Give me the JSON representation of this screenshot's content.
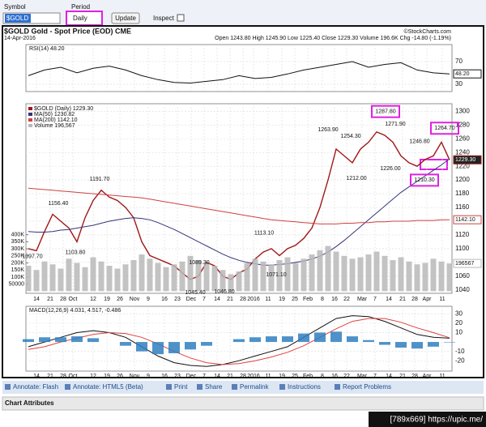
{
  "toolbar": {
    "symbol_label": "Symbol",
    "symbol": "$GOLD",
    "period_label": "Period",
    "period": "Daily",
    "update": "Update",
    "inspect": "Inspect"
  },
  "header": {
    "title": "$GOLD Gold - Spot Price (EOD) CME",
    "credit": "©StockCharts.com",
    "date": "14-Apr-2016",
    "stats": "Open 1243.80 High 1245.90 Low 1225.40 Close 1229.30 Volume 196.6K Chg -14.80 (-1.19%)"
  },
  "chart_data": [
    {
      "type": "line",
      "title": "RSI(14) 48.20",
      "series": [
        {
          "color": "#111",
          "values": [
            45,
            55,
            60,
            50,
            58,
            62,
            55,
            45,
            38,
            33,
            32,
            35,
            38,
            45,
            40,
            42,
            48,
            55,
            60,
            65,
            70,
            60,
            65,
            68,
            55,
            50,
            48.2
          ],
          "tag": "48.20"
        }
      ],
      "ylim": [
        17,
        100
      ],
      "yticks": [
        70,
        30
      ],
      "grid": true
    },
    {
      "type": "line",
      "title": "$GOLD (Daily) 1229.30",
      "series": [
        {
          "name": "$GOLD (Daily) 1229.30",
          "color": "#a01818",
          "tag": "1229.30",
          "values": [
            1100,
            1097,
            1125,
            1150,
            1140,
            1130,
            1110,
            1145,
            1170,
            1185,
            1175,
            1170,
            1160,
            1145,
            1110,
            1090,
            1085,
            1080,
            1075,
            1065,
            1055,
            1060,
            1080,
            1075,
            1060,
            1055,
            1065,
            1070,
            1085,
            1095,
            1100,
            1090,
            1100,
            1105,
            1115,
            1130,
            1160,
            1200,
            1245,
            1235,
            1225,
            1245,
            1255,
            1270,
            1265,
            1255,
            1235,
            1225,
            1220,
            1230,
            1235,
            1255,
            1229.3
          ]
        },
        {
          "name": "MA(50) 1230.82",
          "color": "#33337a",
          "values": [
            1125,
            1124,
            1124,
            1125,
            1127,
            1128,
            1130,
            1132,
            1134,
            1137,
            1140,
            1142,
            1144,
            1145,
            1144,
            1142,
            1138,
            1133,
            1128,
            1122,
            1116,
            1110,
            1104,
            1098,
            1092,
            1087,
            1083,
            1080,
            1078,
            1076,
            1076,
            1077,
            1078,
            1080,
            1082,
            1085,
            1089,
            1095,
            1103,
            1112,
            1122,
            1132,
            1142,
            1152,
            1162,
            1172,
            1182,
            1190,
            1198,
            1206,
            1214,
            1222,
            1230.82
          ]
        },
        {
          "name": "MA(200) 1142.10",
          "color": "#d04040",
          "tag": "1142.10",
          "values": [
            1188,
            1187,
            1186,
            1185,
            1184,
            1183,
            1182,
            1181,
            1180,
            1179,
            1178,
            1177,
            1176,
            1175,
            1174,
            1172,
            1170,
            1168,
            1166,
            1164,
            1162,
            1160,
            1158,
            1156,
            1154,
            1152,
            1150,
            1148,
            1146,
            1144,
            1142,
            1141,
            1140,
            1139,
            1138,
            1137,
            1136,
            1136,
            1136,
            1137,
            1137,
            1138,
            1138,
            1139,
            1139,
            1140,
            1140,
            1140,
            1141,
            1141,
            1141,
            1142,
            1142.1
          ]
        },
        {
          "name": "Volume 196,567",
          "color": "#b8b8b8",
          "axis": "y2",
          "tag": "196567",
          "values": [
            180000,
            150000,
            210000,
            190000,
            160000,
            230000,
            200000,
            170000,
            240000,
            210000,
            180000,
            160000,
            190000,
            220000,
            260000,
            230000,
            200000,
            170000,
            190000,
            210000,
            250000,
            220000,
            200000,
            180000,
            150000,
            120000,
            140000,
            200000,
            230000,
            210000,
            190000,
            220000,
            240000,
            200000,
            230000,
            260000,
            290000,
            320000,
            280000,
            250000,
            230000,
            240000,
            260000,
            280000,
            250000,
            220000,
            240000,
            210000,
            190000,
            200000,
            230000,
            210000,
            196567
          ]
        }
      ],
      "ylim": [
        1035,
        1311
      ],
      "yticks": [
        1040,
        1060,
        1080,
        1100,
        1120,
        1140,
        1160,
        1180,
        1200,
        1220,
        1240,
        1260,
        1280,
        1300
      ],
      "y2lim": [
        -15000,
        1327000
      ],
      "y2ticks": [
        50000,
        {
          "value": 100000,
          "label": "100K"
        },
        {
          "value": 150000,
          "label": "150K"
        },
        {
          "value": 200000,
          "label": "200K"
        },
        {
          "value": 250000,
          "label": "250K"
        },
        {
          "value": 300000,
          "label": "300K"
        },
        {
          "value": 350000,
          "label": "350K"
        },
        {
          "value": 400000,
          "label": "400K"
        }
      ],
      "grid": true,
      "annotations": [
        {
          "value": 1097.7,
          "label": "1097.70"
        },
        {
          "value": 1156.4,
          "label": "1156.40"
        },
        {
          "value": 1103.8,
          "label": "1103.80"
        },
        {
          "value": 1191.7,
          "label": "1191.70"
        },
        {
          "value": 1089.3,
          "label": "1089.30"
        },
        {
          "value": 1045.4,
          "label": "1045.40"
        },
        {
          "value": 1046.8,
          "label": "1046.80"
        },
        {
          "value": 1113.1,
          "label": "1113.10"
        },
        {
          "value": 1071.1,
          "label": "1071.10"
        },
        {
          "value": 1263.9,
          "label": "1263.90"
        },
        {
          "value": 1254.3,
          "label": "1254.30"
        },
        {
          "value": 1212,
          "label": "1212.00"
        },
        {
          "value": 1287.8,
          "label": "1287.80",
          "highlight": true
        },
        {
          "value": 1271.9,
          "label": "1271.90"
        },
        {
          "value": 1226,
          "label": "1226.00"
        },
        {
          "value": 1246.8,
          "label": "1246.80"
        },
        {
          "value": 1210.3,
          "label": "1210.30",
          "highlight": true
        },
        {
          "value": 1264.7,
          "label": "1264.70",
          "highlight": true
        }
      ]
    },
    {
      "type": "line",
      "title": "MACD(12,26,9) 4.031, 4.517, -0.486",
      "series": [
        {
          "color": "#111",
          "values": [
            -5,
            0,
            5,
            10,
            12,
            10,
            5,
            -5,
            -15,
            -22,
            -25,
            -26,
            -24,
            -20,
            -15,
            -10,
            -5,
            5,
            15,
            25,
            28,
            27,
            22,
            15,
            8,
            5,
            4.031
          ]
        },
        {
          "color": "#e04040",
          "values": [
            -8,
            -5,
            0,
            4,
            8,
            10,
            9,
            5,
            -2,
            -10,
            -17,
            -22,
            -24,
            -23,
            -20,
            -16,
            -11,
            -4,
            5,
            14,
            22,
            25,
            25,
            21,
            15,
            10,
            4.517
          ]
        },
        {
          "color": "#2f7fbf",
          "type": "bar",
          "values": [
            3,
            5,
            5,
            6,
            4,
            0,
            -4,
            -10,
            -13,
            -12,
            -8,
            -4,
            0,
            3,
            5,
            6,
            6,
            9,
            10,
            11,
            6,
            2,
            -3,
            -6,
            -7,
            -5,
            -0.486
          ]
        }
      ],
      "ylim": [
        -31,
        38
      ],
      "yticks": [
        30,
        20,
        10,
        -10,
        -20
      ],
      "grid": true
    }
  ],
  "x_axis_labels": [
    "14",
    "21",
    "28",
    "Oct",
    "12",
    "19",
    "26",
    "Nov",
    "9",
    "16",
    "23",
    "Dec",
    "7",
    "14",
    "21",
    "28",
    "2016",
    "11",
    "19",
    "25",
    "Feb",
    "8",
    "16",
    "22",
    "Mar",
    "7",
    "14",
    "21",
    "28",
    "Apr",
    "11"
  ],
  "footer": {
    "links": [
      "Annotate: Flash",
      "Annotate: HTML5 (Beta)",
      "Print",
      "Share",
      "Permalink",
      "Instructions",
      "Report Problems"
    ],
    "section": "Chart Attributes"
  },
  "watermark": "[789x669] https://upic.me/"
}
